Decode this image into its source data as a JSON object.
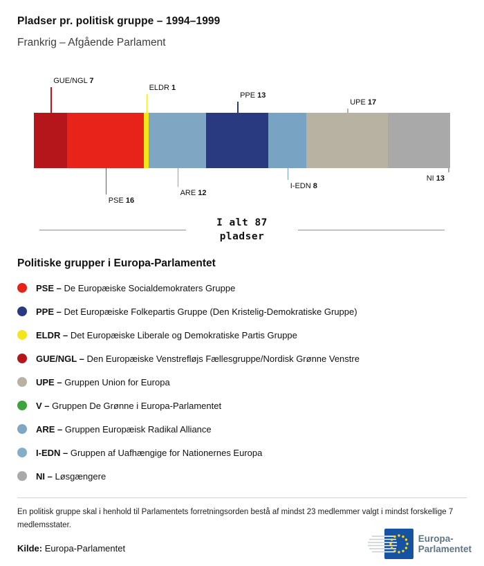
{
  "header": {
    "title": "Pladser pr. politisk gruppe – 1994–1999",
    "subtitle": "Frankrig – Afgående Parlament"
  },
  "chart_data": {
    "type": "bar",
    "variant": "horizontal-stacked",
    "title": "Pladser pr. politisk gruppe – 1994–1999",
    "subtitle": "Frankrig – Afgående Parlament",
    "total_seats": 87,
    "total_label_line1": "I alt 87",
    "total_label_line2": "pladser",
    "series": [
      {
        "name": "GUE/NGL",
        "value": 7,
        "color": "#b5161c",
        "label_position": "above"
      },
      {
        "name": "PSE",
        "value": 16,
        "color": "#e8231a",
        "label_position": "below"
      },
      {
        "name": "ELDR",
        "value": 1,
        "color": "#f5e61b",
        "label_position": "above"
      },
      {
        "name": "ARE",
        "value": 12,
        "color": "#7fa7c4",
        "label_position": "below"
      },
      {
        "name": "PPE",
        "value": 13,
        "color": "#2a3a81",
        "label_position": "above"
      },
      {
        "name": "I-EDN",
        "value": 8,
        "color": "#79a3c3",
        "label_position": "below"
      },
      {
        "name": "UPE",
        "value": 17,
        "color": "#b8b2a3",
        "label_position": "above"
      },
      {
        "name": "NI",
        "value": 13,
        "color": "#a9a9a9",
        "label_position": "below",
        "anchor": "right"
      }
    ]
  },
  "legend": {
    "title": "Politiske grupper i Europa-Parlamentet",
    "items": [
      {
        "abbr": "PSE",
        "name": "De Europæiske Socialdemokraters Gruppe",
        "color": "#e8231a"
      },
      {
        "abbr": "PPE",
        "name": "Det Europæiske Folkepartis Gruppe (Den Kristelig-Demokratiske Gruppe)",
        "color": "#2a3a81"
      },
      {
        "abbr": "ELDR",
        "name": "Det Europæiske Liberale og Demokratiske Partis Gruppe",
        "color": "#f5e61b"
      },
      {
        "abbr": "GUE/NGL",
        "name": "Den Europæiske Venstrefløjs Fællesgruppe/Nordisk Grønne Venstre",
        "color": "#b5161c"
      },
      {
        "abbr": "UPE",
        "name": "Gruppen Union for Europa",
        "color": "#b8b2a3"
      },
      {
        "abbr": "V",
        "name": "Gruppen De Grønne i Europa-Parlamentet",
        "color": "#3da43c"
      },
      {
        "abbr": "ARE",
        "name": "Gruppen Europæisk Radikal Alliance",
        "color": "#7fa7c4"
      },
      {
        "abbr": "I-EDN",
        "name": "Gruppen af Uafhængige for Nationernes Europa",
        "color": "#85aec8"
      },
      {
        "abbr": "NI",
        "name": "Løsgængere",
        "color": "#a9a9a9"
      }
    ]
  },
  "footer": {
    "note": "En politisk gruppe skal i henhold til Parlamentets forretningsorden bestå af mindst 23 medlemmer valgt i mindst forskellige 7 medlemsstater.",
    "source_label": "Kilde:",
    "source_value": "Europa-Parlamentet",
    "logo": {
      "line1": "Europa-",
      "line2": "Parlamentet"
    }
  }
}
